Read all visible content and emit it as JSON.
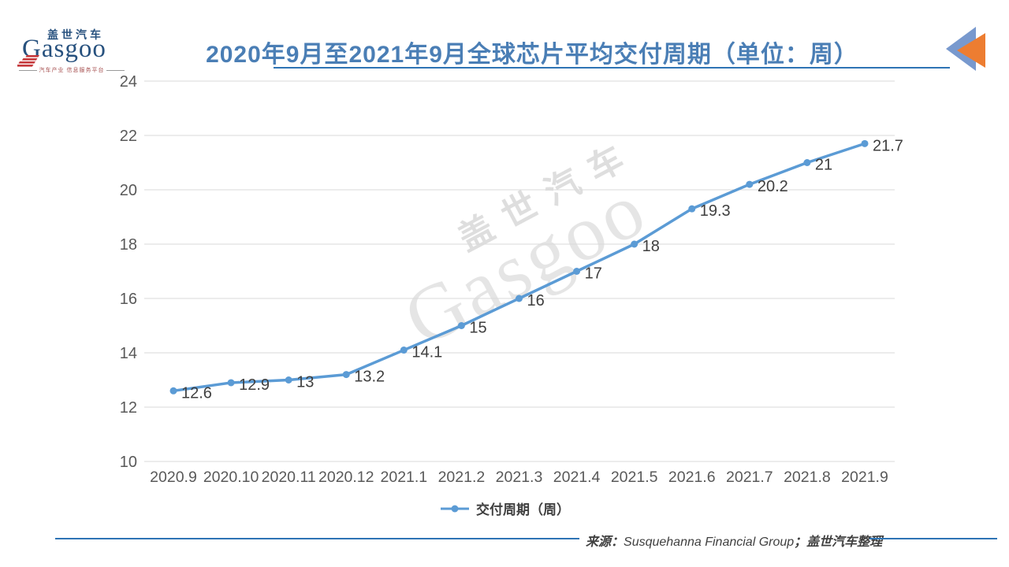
{
  "brand": {
    "logo_cn": "盖世汽车",
    "logo_en": "Gasgoo",
    "tagline": "汽车产业 信息服务平台",
    "watermark_cn": "盖世汽车",
    "watermark_en": "Gasgoo"
  },
  "header": {
    "title": "2020年9月至2021年9月全球芯片平均交付周期（单位：周）",
    "title_color": "#4A7EB5",
    "underline_color": "#2E74B5",
    "corner_icon_colors": {
      "back_triangle": "#7899CE",
      "front_triangle": "#ED7D31"
    }
  },
  "chart_data": {
    "type": "line",
    "title": "2020年9月至2021年9月全球芯片平均交付周期（单位：周）",
    "categories": [
      "2020.9",
      "2020.10",
      "2020.11",
      "2020.12",
      "2021.1",
      "2021.2",
      "2021.3",
      "2021.4",
      "2021.5",
      "2021.6",
      "2021.7",
      "2021.8",
      "2021.9"
    ],
    "series": [
      {
        "name": "交付周期（周）",
        "color": "#5B9BD5",
        "values": [
          12.6,
          12.9,
          13,
          13.2,
          14.1,
          15,
          16,
          17,
          18,
          19.3,
          20.2,
          21,
          21.7
        ]
      }
    ],
    "xlabel": "",
    "ylabel": "",
    "ylim": [
      10,
      24
    ],
    "yticks": [
      24,
      22,
      20,
      18,
      16,
      14,
      12,
      10
    ],
    "grid": true,
    "gridline_color": "#D9D9D9",
    "tick_color": "#595959",
    "data_label_color": "#3F3F3F",
    "data_labels": true,
    "legend_position": "bottom"
  },
  "legend": {
    "label": "交付周期（周）"
  },
  "footer": {
    "prefix": "来源：",
    "source": "Susquehanna Financial Group",
    "suffix": "；盖世汽车整理",
    "rule_color": "#2E74B5"
  }
}
